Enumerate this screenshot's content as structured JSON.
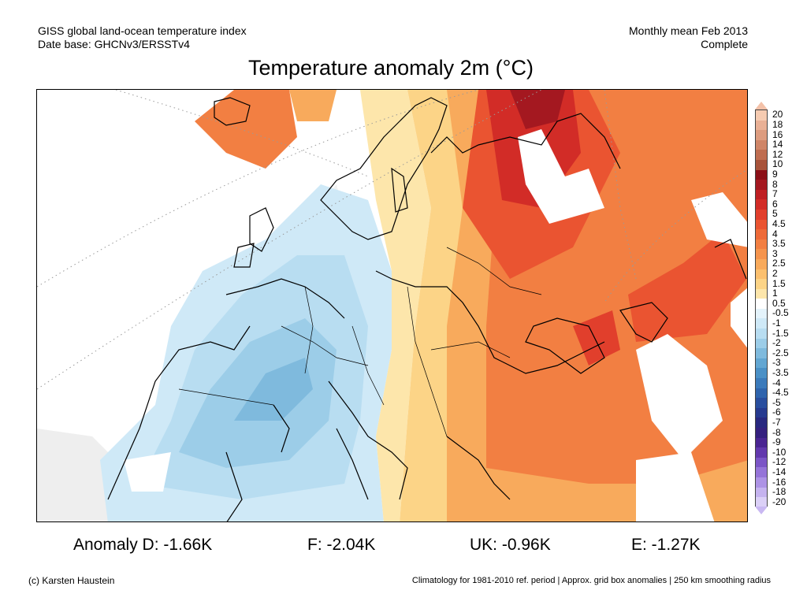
{
  "header": {
    "left_line1": "GISS global land-ocean temperature index",
    "left_line2": "Date base: GHCNv3/ERSSTv4",
    "right_line1": "Monthly mean Feb 2013",
    "right_line2": "Complete"
  },
  "title": "Temperature anomaly 2m (°C)",
  "legend": {
    "levels": [
      {
        "label": "20",
        "color": "#f6cbb1"
      },
      {
        "label": "18",
        "color": "#e9b095"
      },
      {
        "label": "16",
        "color": "#dd9c7f"
      },
      {
        "label": "14",
        "color": "#cf8567"
      },
      {
        "label": "12",
        "color": "#bf6d50"
      },
      {
        "label": "10",
        "color": "#a8533a"
      },
      {
        "label": "9",
        "color": "#8b0f17"
      },
      {
        "label": "8",
        "color": "#a41820"
      },
      {
        "label": "7",
        "color": "#bf1f23"
      },
      {
        "label": "6",
        "color": "#d22c27"
      },
      {
        "label": "5",
        "color": "#e13f2c"
      },
      {
        "label": "4.5",
        "color": "#ea5431"
      },
      {
        "label": "4",
        "color": "#ee6a38"
      },
      {
        "label": "3.5",
        "color": "#f27f42"
      },
      {
        "label": "3",
        "color": "#f5944d"
      },
      {
        "label": "2.5",
        "color": "#f8aa5c"
      },
      {
        "label": "2",
        "color": "#fbc06f"
      },
      {
        "label": "1.5",
        "color": "#fcd487"
      },
      {
        "label": "1",
        "color": "#fde6ab"
      },
      {
        "label": "0.5",
        "color": "#ffffff"
      },
      {
        "label": "-0.5",
        "color": "#e4f3fb"
      },
      {
        "label": "-1",
        "color": "#cfe9f7"
      },
      {
        "label": "-1.5",
        "color": "#b8ddf1"
      },
      {
        "label": "-2",
        "color": "#9ccde8"
      },
      {
        "label": "-2.5",
        "color": "#7fbadd"
      },
      {
        "label": "-3",
        "color": "#62a6d2"
      },
      {
        "label": "-3.5",
        "color": "#4a90c6"
      },
      {
        "label": "-4",
        "color": "#3b7abb"
      },
      {
        "label": "-4.5",
        "color": "#2f64ad"
      },
      {
        "label": "-5",
        "color": "#294e9e"
      },
      {
        "label": "-6",
        "color": "#263a8f"
      },
      {
        "label": "-7",
        "color": "#28287f"
      },
      {
        "label": "-8",
        "color": "#34207e"
      },
      {
        "label": "-9",
        "color": "#4a2592"
      },
      {
        "label": "-10",
        "color": "#6238ad"
      },
      {
        "label": "-12",
        "color": "#7b55c6"
      },
      {
        "label": "-14",
        "color": "#9574d8"
      },
      {
        "label": "-16",
        "color": "#ad93e5"
      },
      {
        "label": "-18",
        "color": "#c5b3ef"
      },
      {
        "label": "-20",
        "color": "#dbd0f7"
      }
    ]
  },
  "anomalies": {
    "d": "Anomaly D: -1.66K",
    "f": "F: -2.04K",
    "uk": "UK: -0.96K",
    "e": "E: -1.27K"
  },
  "footer": {
    "credit": "(c) Karsten Haustein",
    "note": "Climatology for 1981-2010 ref. period | Approx. grid box anomalies | 250 km smoothing radius"
  }
}
